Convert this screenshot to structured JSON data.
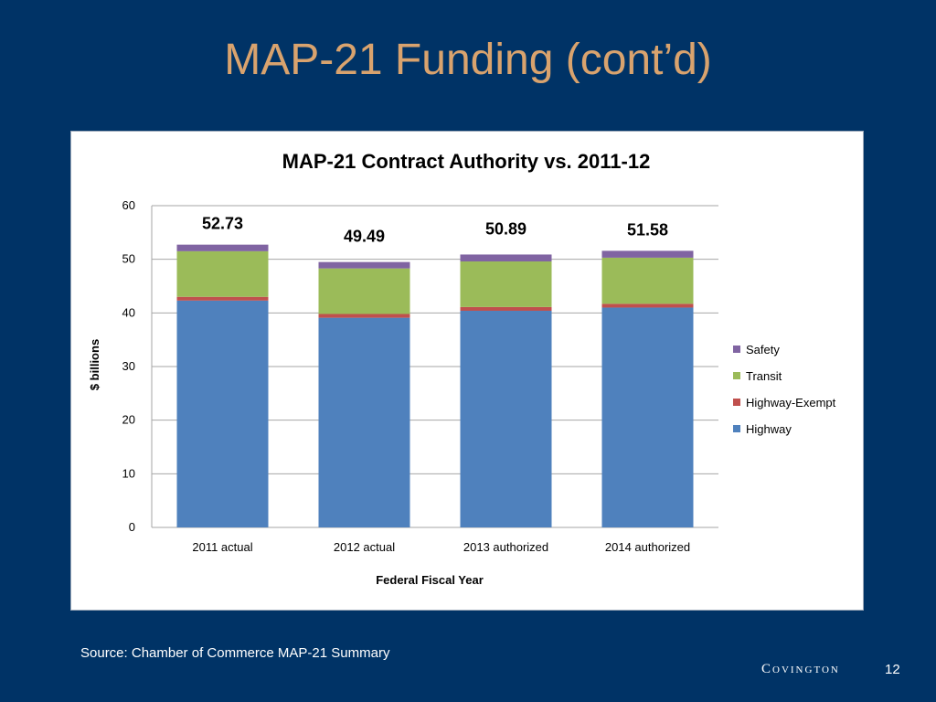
{
  "slide": {
    "title": "MAP-21 Funding (cont’d)",
    "source": "Source:  Chamber of Commerce MAP-21 Summary",
    "brand": "Covington",
    "page_number": "12"
  },
  "chart_data": {
    "type": "bar",
    "stacked": true,
    "title": "MAP-21 Contract Authority vs. 2011-12",
    "xlabel": "Federal Fiscal Year",
    "ylabel": "$ billions",
    "ylim": [
      0,
      60
    ],
    "yticks": [
      0,
      10,
      20,
      30,
      40,
      50,
      60
    ],
    "grid": true,
    "legend_position": "right",
    "categories": [
      "2011 actual",
      "2012 actual",
      "2013 authorized",
      "2014 authorized"
    ],
    "totals": [
      "52.73",
      "49.49",
      "50.89",
      "51.58"
    ],
    "series": [
      {
        "name": "Highway",
        "color": "#4f81bd",
        "values": [
          42.3,
          39.1,
          40.4,
          41.0
        ]
      },
      {
        "name": "Highway-Exempt",
        "color": "#c0504d",
        "values": [
          0.7,
          0.7,
          0.7,
          0.7
        ]
      },
      {
        "name": "Transit",
        "color": "#9bbb59",
        "values": [
          8.5,
          8.5,
          8.5,
          8.6
        ]
      },
      {
        "name": "Safety",
        "color": "#8064a2",
        "values": [
          1.23,
          1.19,
          1.29,
          1.28
        ]
      }
    ]
  }
}
